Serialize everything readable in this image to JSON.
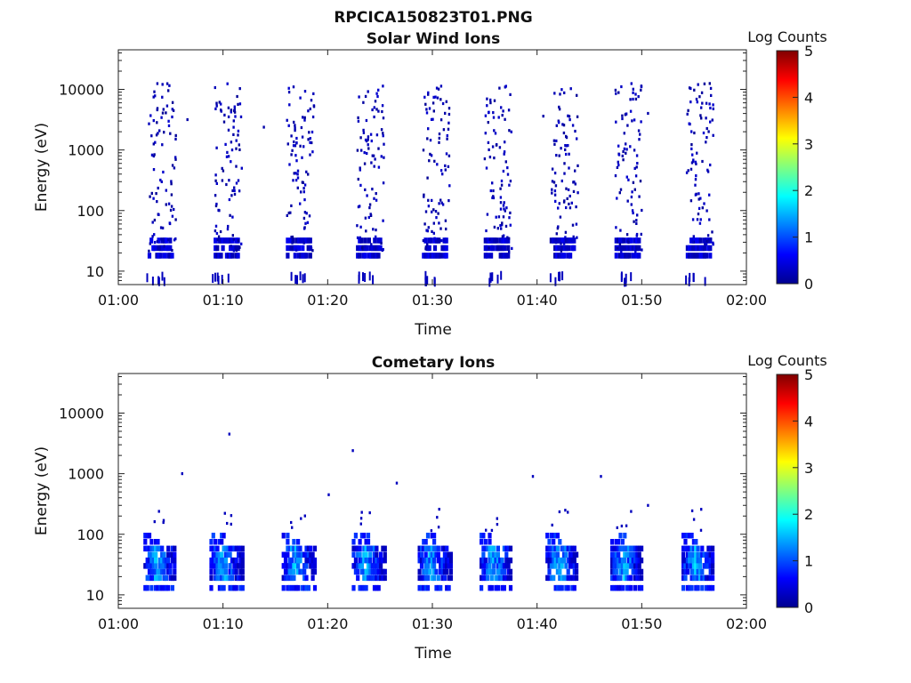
{
  "figure_title": "RPCICA150823T01.PNG",
  "chart_data": [
    {
      "type": "heatmap",
      "title": "Solar Wind Ions",
      "xlabel": "Time",
      "ylabel": "Energy (eV)",
      "x_ticks": [
        "01:00",
        "01:10",
        "01:20",
        "01:30",
        "01:40",
        "01:50",
        "02:00"
      ],
      "y_ticks": [
        "10",
        "100",
        "1000",
        "10000"
      ],
      "y_scale": "log",
      "xlim": [
        "01:00",
        "02:00"
      ],
      "ylim": [
        6,
        45000
      ],
      "colorbar": {
        "label": "Log Counts",
        "ticks": [
          "0",
          "1",
          "2",
          "3",
          "4",
          "5"
        ],
        "range": [
          0,
          5
        ],
        "colormap": "jet"
      },
      "grid": false
    },
    {
      "type": "heatmap",
      "title": "Cometary Ions",
      "xlabel": "Time",
      "ylabel": "Energy (eV)",
      "x_ticks": [
        "01:00",
        "01:10",
        "01:20",
        "01:30",
        "01:40",
        "01:50",
        "02:00"
      ],
      "y_ticks": [
        "10",
        "100",
        "1000",
        "10000"
      ],
      "y_scale": "log",
      "xlim": [
        "01:00",
        "02:00"
      ],
      "ylim": [
        6,
        45000
      ],
      "colorbar": {
        "label": "Log Counts",
        "ticks": [
          "0",
          "1",
          "2",
          "3",
          "4",
          "5"
        ],
        "range": [
          0,
          5
        ],
        "colormap": "jet"
      },
      "grid": false
    }
  ]
}
